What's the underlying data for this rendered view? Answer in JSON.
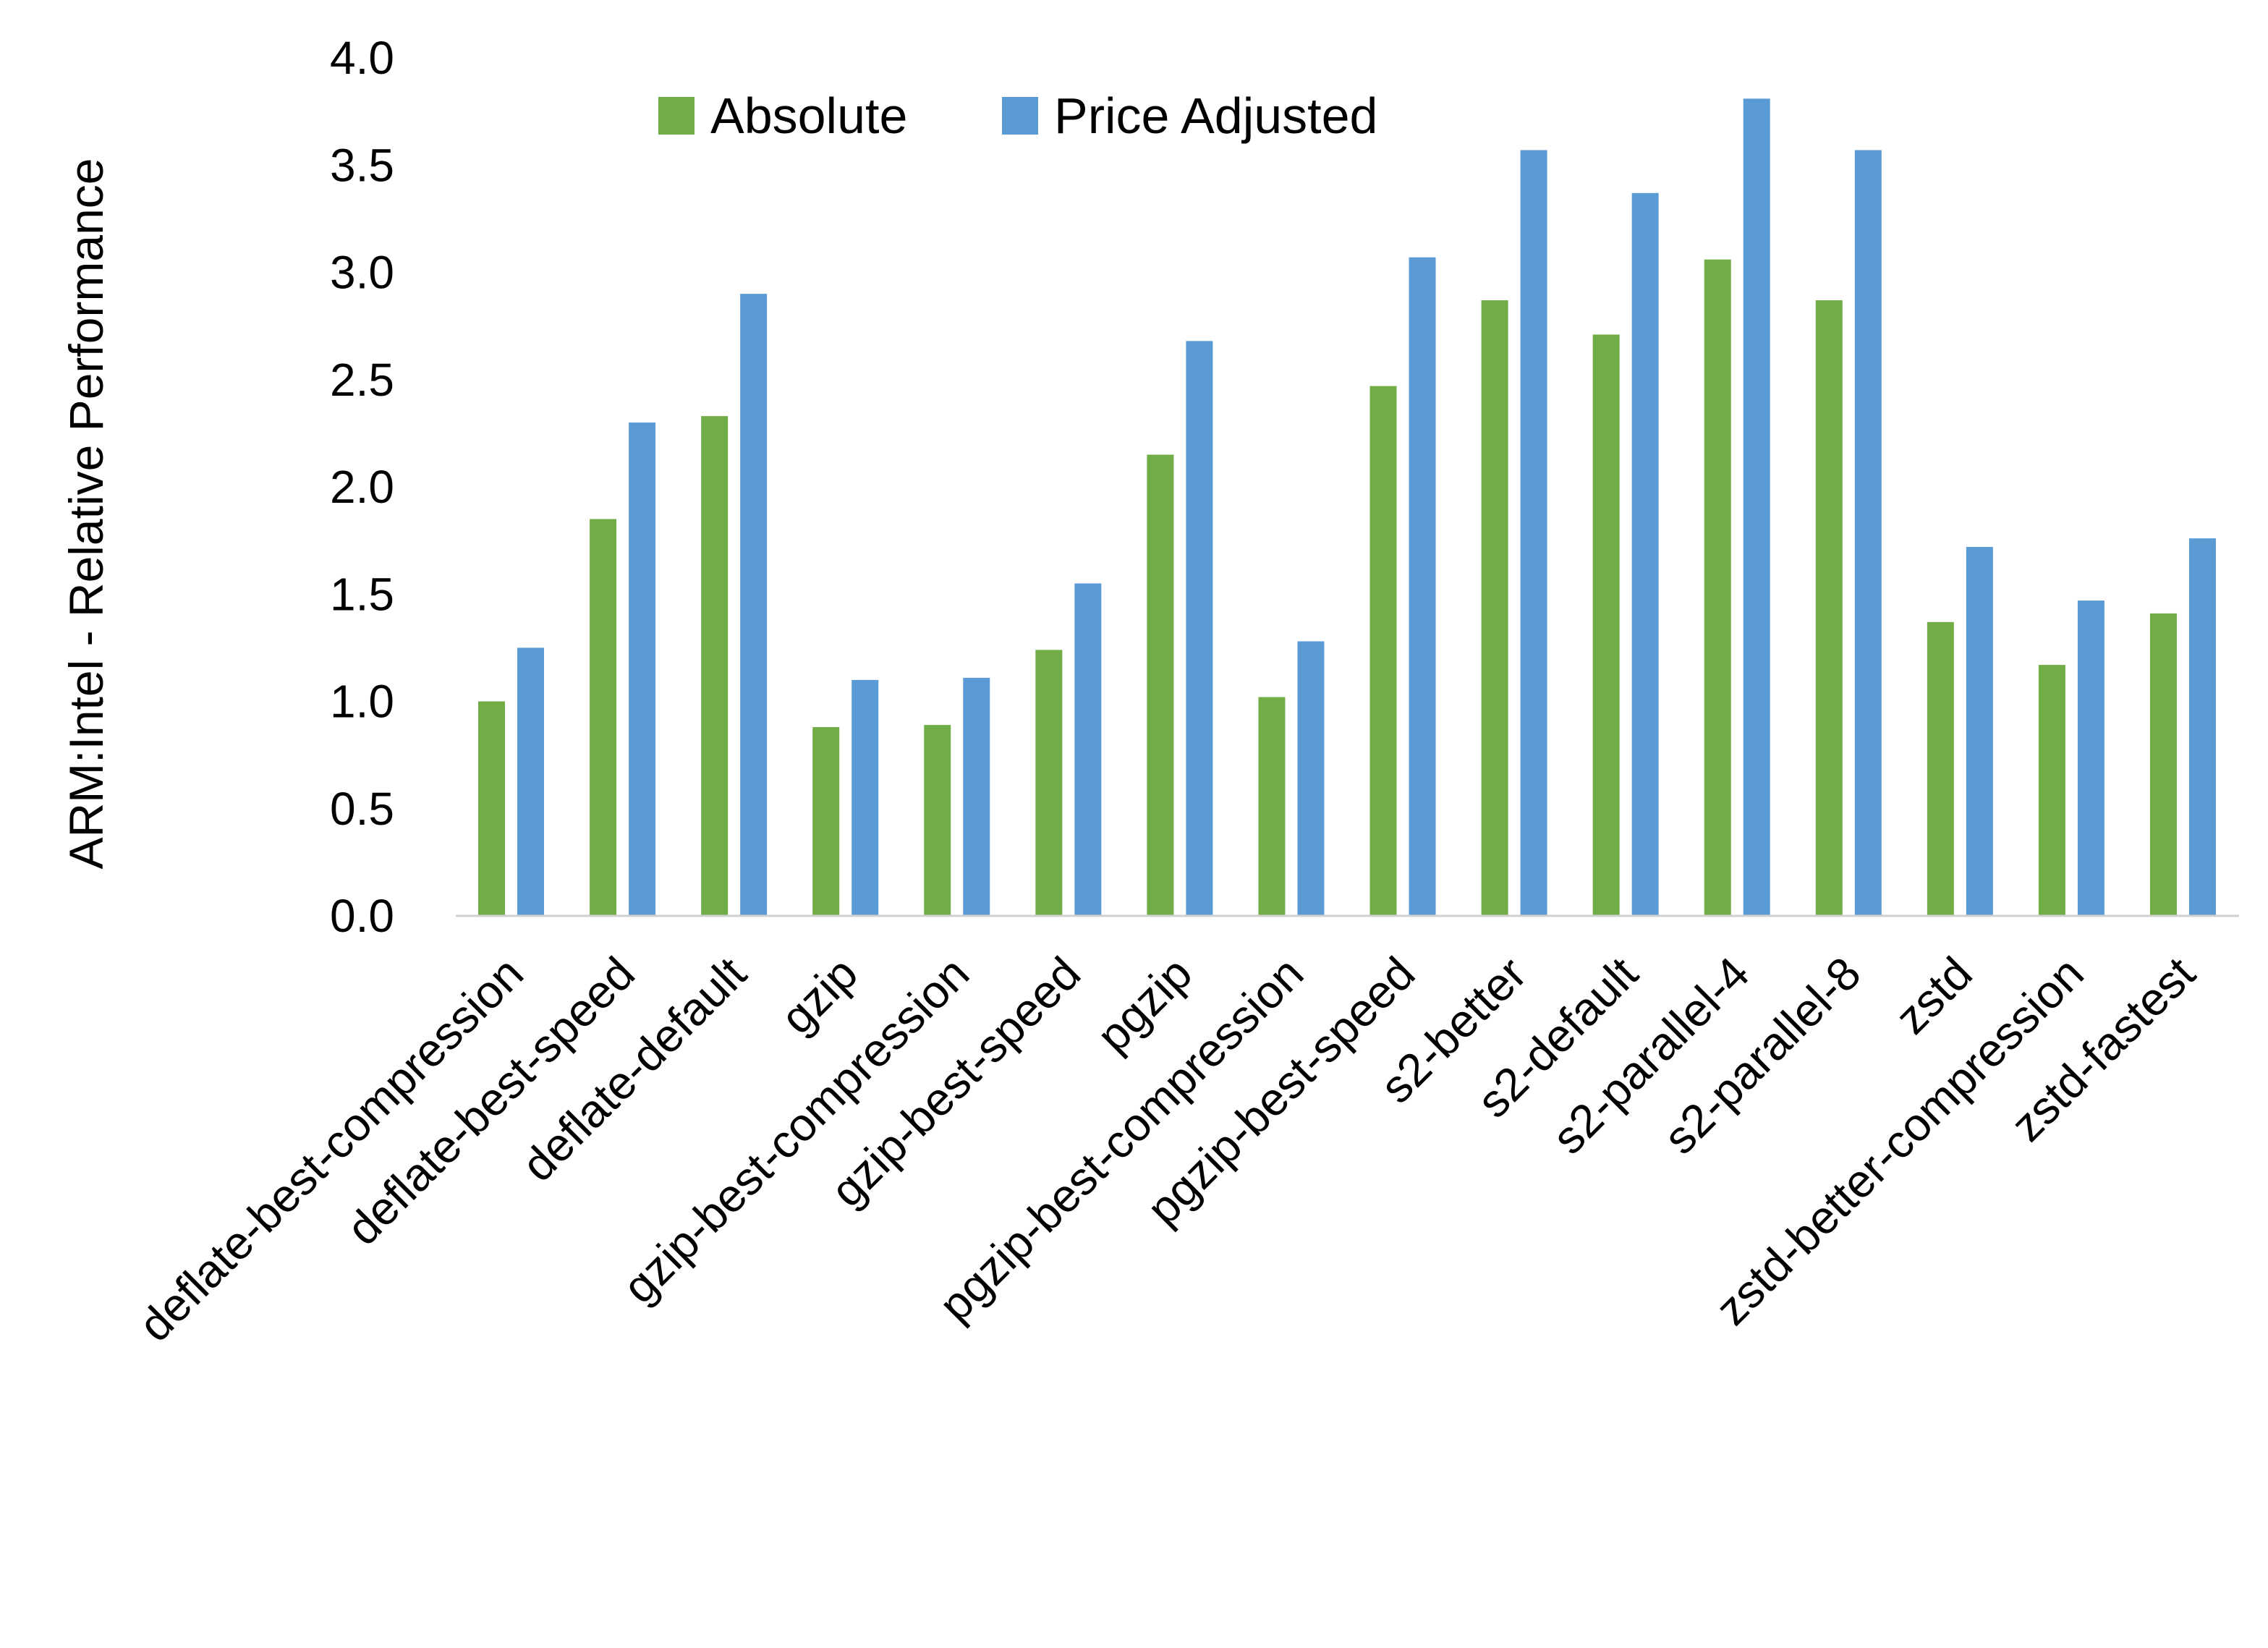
{
  "chart_data": {
    "type": "bar",
    "title": "",
    "xlabel": "",
    "ylabel": "ARM:Intel - Relative Performance",
    "ylim": [
      0,
      4.0
    ],
    "yticks": [
      "0.0",
      "0.5",
      "1.0",
      "1.5",
      "2.0",
      "2.5",
      "3.0",
      "3.5",
      "4.0"
    ],
    "grid": false,
    "legend_position": "top",
    "categories": [
      "deflate-best-compression",
      "deflate-best-speed",
      "deflate-default",
      "gzip",
      "gzip-best-compression",
      "gzip-best-speed",
      "pgzip",
      "pgzip-best-compression",
      "pgzip-best-speed",
      "s2-better",
      "s2-default",
      "s2-parallel-4",
      "s2-parallel-8",
      "zstd",
      "zstd-better-compression",
      "zstd-fastest"
    ],
    "series": [
      {
        "name": "Absolute",
        "color": "#70AD47",
        "values": [
          1.0,
          1.85,
          2.33,
          0.88,
          0.89,
          1.24,
          2.15,
          1.02,
          2.47,
          2.87,
          2.71,
          3.06,
          2.87,
          1.37,
          1.17,
          1.41
        ]
      },
      {
        "name": "Price Adjusted",
        "color": "#5B9BD5",
        "values": [
          1.25,
          2.3,
          2.9,
          1.1,
          1.11,
          1.55,
          2.68,
          1.28,
          3.07,
          3.57,
          3.37,
          3.81,
          3.57,
          1.72,
          1.47,
          1.76
        ]
      }
    ]
  }
}
